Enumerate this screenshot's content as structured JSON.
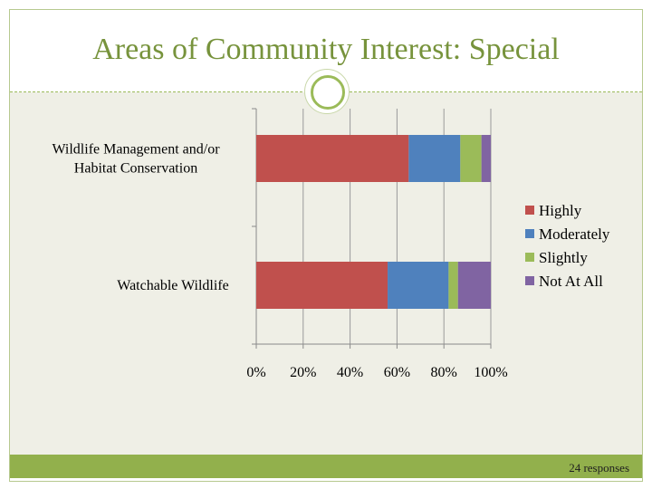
{
  "slide": {
    "title": "Areas of Community Interest: Special",
    "footer_note": "24 responses"
  },
  "colors": {
    "title": "#77933c",
    "content_bg": "#efefe6",
    "footer_bar": "#92b04c"
  },
  "chart_data": {
    "type": "bar",
    "orientation": "horizontal",
    "stacked": "percent",
    "categories": [
      "Wildlife Management and/or Habitat Conservation",
      "Watchable Wildlife"
    ],
    "category_lines": [
      [
        "Wildlife Management and/or",
        "Habitat Conservation"
      ],
      [
        "Watchable Wildlife"
      ]
    ],
    "series": [
      {
        "name": "Highly",
        "color": "#c0504d",
        "values": [
          65,
          56
        ]
      },
      {
        "name": "Moderately",
        "color": "#4f81bd",
        "values": [
          22,
          26
        ]
      },
      {
        "name": "Slightly",
        "color": "#9bbb59",
        "values": [
          9,
          4
        ]
      },
      {
        "name": "Not At All",
        "color": "#8064a2",
        "values": [
          4,
          14
        ]
      }
    ],
    "xlim": [
      0,
      100
    ],
    "xticks": [
      0,
      20,
      40,
      60,
      80,
      100
    ],
    "xtick_labels": [
      "0%",
      "20%",
      "40%",
      "60%",
      "80%",
      "100%"
    ],
    "grid": true,
    "legend": "right"
  }
}
